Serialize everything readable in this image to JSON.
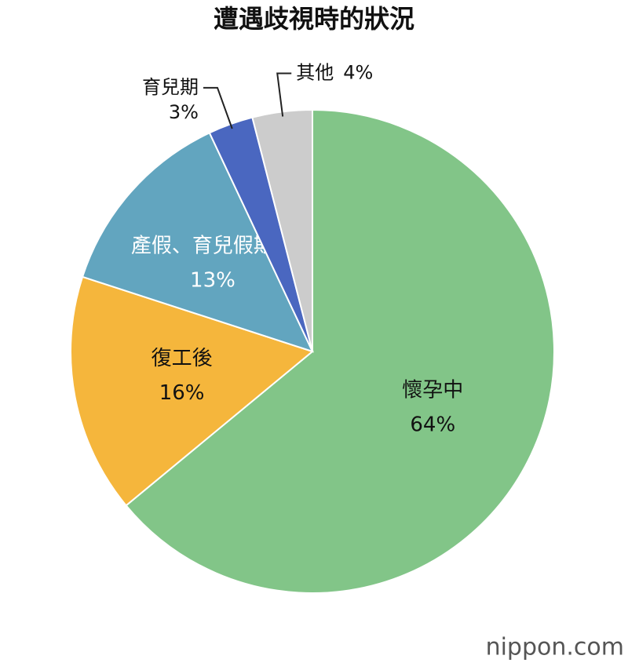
{
  "chart_data": {
    "type": "pie",
    "title": "遭遇歧視時的狀況",
    "categories": [
      "懷孕中",
      "復工後",
      "產假、育兒假期間",
      "育兒期",
      "其他"
    ],
    "values": [
      64,
      16,
      13,
      3,
      4
    ],
    "value_labels": [
      "64%",
      "16%",
      "13%",
      "3%",
      "4%"
    ],
    "colors": [
      "#82c588",
      "#f5b63c",
      "#62a5bf",
      "#4a67c0",
      "#cccccc"
    ],
    "watermark": "nippon.com"
  }
}
